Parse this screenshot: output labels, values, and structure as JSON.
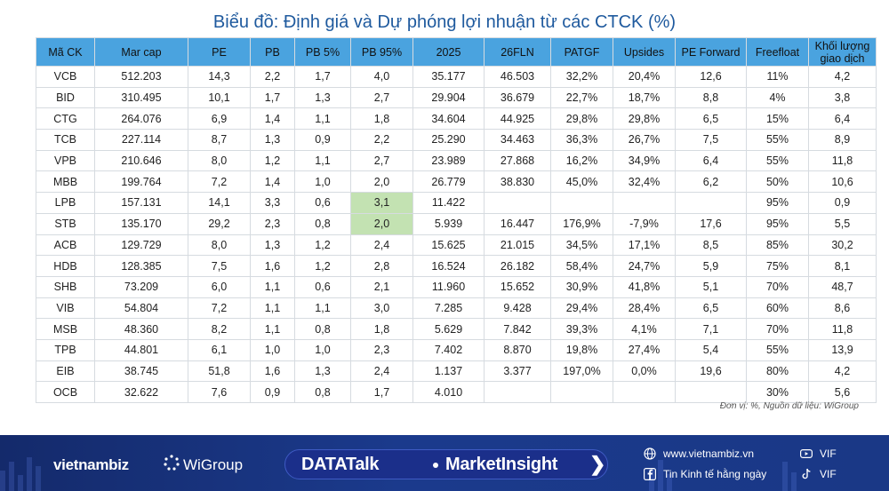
{
  "title": "Biểu đồ: Định giá và Dự phóng lợi nhuận từ các CTCK (%)",
  "table": {
    "headers": [
      "Mã CK",
      "Mar cap",
      "PE",
      "PB",
      "PB 5%",
      "PB 95%",
      "2025",
      "26FLN",
      "PATGF",
      "Upsides",
      "PE Forward",
      "Freefloat",
      "Khối lượng giao dịch"
    ],
    "rows": [
      [
        "VCB",
        "512.203",
        "14,3",
        "2,2",
        "1,7",
        "4,0",
        "35.177",
        "46.503",
        "32,2%",
        "20,4%",
        "12,6",
        "11%",
        "4,2"
      ],
      [
        "BID",
        "310.495",
        "10,1",
        "1,7",
        "1,3",
        "2,7",
        "29.904",
        "36.679",
        "22,7%",
        "18,7%",
        "8,8",
        "4%",
        "3,8"
      ],
      [
        "CTG",
        "264.076",
        "6,9",
        "1,4",
        "1,1",
        "1,8",
        "34.604",
        "44.925",
        "29,8%",
        "29,8%",
        "6,5",
        "15%",
        "6,4"
      ],
      [
        "TCB",
        "227.114",
        "8,7",
        "1,3",
        "0,9",
        "2,2",
        "25.290",
        "34.463",
        "36,3%",
        "26,7%",
        "7,5",
        "55%",
        "8,9"
      ],
      [
        "VPB",
        "210.646",
        "8,0",
        "1,2",
        "1,1",
        "2,7",
        "23.989",
        "27.868",
        "16,2%",
        "34,9%",
        "6,4",
        "55%",
        "11,8"
      ],
      [
        "MBB",
        "199.764",
        "7,2",
        "1,4",
        "1,0",
        "2,0",
        "26.779",
        "38.830",
        "45,0%",
        "32,4%",
        "6,2",
        "50%",
        "10,6"
      ],
      [
        "LPB",
        "157.131",
        "14,1",
        "3,3",
        "0,6",
        "3,1",
        "11.422",
        "",
        "",
        "",
        "",
        "95%",
        "0,9"
      ],
      [
        "STB",
        "135.170",
        "29,2",
        "2,3",
        "0,8",
        "2,0",
        "5.939",
        "16.447",
        "176,9%",
        "-7,9%",
        "17,6",
        "95%",
        "5,5"
      ],
      [
        "ACB",
        "129.729",
        "8,0",
        "1,3",
        "1,2",
        "2,4",
        "15.625",
        "21.015",
        "34,5%",
        "17,1%",
        "8,5",
        "85%",
        "30,2"
      ],
      [
        "HDB",
        "128.385",
        "7,5",
        "1,6",
        "1,2",
        "2,8",
        "16.524",
        "26.182",
        "58,4%",
        "24,7%",
        "5,9",
        "75%",
        "8,1"
      ],
      [
        "SHB",
        "73.209",
        "6,0",
        "1,1",
        "0,6",
        "2,1",
        "11.960",
        "15.652",
        "30,9%",
        "41,8%",
        "5,1",
        "70%",
        "48,7"
      ],
      [
        "VIB",
        "54.804",
        "7,2",
        "1,1",
        "1,1",
        "3,0",
        "7.285",
        "9.428",
        "29,4%",
        "28,4%",
        "6,5",
        "60%",
        "8,6"
      ],
      [
        "MSB",
        "48.360",
        "8,2",
        "1,1",
        "0,8",
        "1,8",
        "5.629",
        "7.842",
        "39,3%",
        "4,1%",
        "7,1",
        "70%",
        "11,8"
      ],
      [
        "TPB",
        "44.801",
        "6,1",
        "1,0",
        "1,0",
        "2,3",
        "7.402",
        "8.870",
        "19,8%",
        "27,4%",
        "5,4",
        "55%",
        "13,9"
      ],
      [
        "EIB",
        "38.745",
        "51,8",
        "1,6",
        "1,3",
        "2,4",
        "1.137",
        "3.377",
        "197,0%",
        "0,0%",
        "19,6",
        "80%",
        "4,2"
      ],
      [
        "OCB",
        "32.622",
        "7,6",
        "0,9",
        "0,8",
        "1,7",
        "4.010",
        "",
        "",
        "",
        "",
        "30%",
        "5,6"
      ]
    ],
    "highlight_cells": [
      [
        6,
        5
      ],
      [
        7,
        5
      ]
    ]
  },
  "source_note": "Đơn vị: %, Nguồn dữ liệu: WiGroup",
  "colors": {
    "header_bg": "#4aa3df",
    "highlight": "#c3e2b2",
    "title": "#1f5a9e",
    "footer_bg": "#1b3a8c"
  },
  "footer": {
    "brand_vietnambiz": "vietnambiz",
    "brand_wigroup": "WiGroup",
    "datatalk": "DATATalk",
    "marketinsight": "MarketInsight",
    "website": "www.vietnambiz.vn",
    "facebook": "Tin Kinh tế hằng ngày",
    "youtube": "VIF",
    "tiktok": "VIF",
    "icons": [
      "globe-icon",
      "facebook-icon",
      "youtube-icon",
      "tiktok-icon",
      "wigroup-logo-icon",
      "chevron-right-icon"
    ]
  }
}
